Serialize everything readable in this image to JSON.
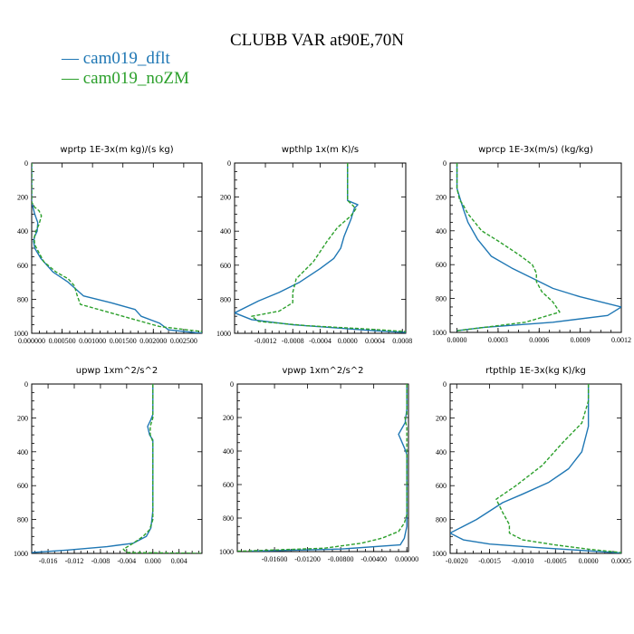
{
  "figure": {
    "title": "CLUBB VAR at90E,70N",
    "legend": [
      {
        "label": "— cam019_dflt",
        "name": "cam019_dflt",
        "color": "#1f77b4"
      },
      {
        "label": "— cam019_noZM",
        "name": "cam019_noZM",
        "color": "#2ca02c"
      }
    ]
  },
  "chart_data": [
    {
      "type": "line",
      "title": "wprtp  1E-3x(m kg)/(s kg)",
      "xlim": [
        0,
        0.0028
      ],
      "ylim": [
        1000,
        0
      ],
      "xticks": [
        0,
        0.0005,
        0.001,
        0.0015,
        0.002,
        0.0025
      ],
      "xtick_labels": [
        "0.000000",
        "0.000500",
        "0.001000",
        "0.001500",
        "0.002000",
        "0.002500"
      ],
      "yticks": [
        0,
        200,
        400,
        600,
        800,
        1000
      ],
      "ytick_labels": [
        "0",
        "200",
        "400",
        "600",
        "800",
        "1000"
      ],
      "series": [
        {
          "name": "cam019_dflt",
          "color": "#1f77b4",
          "dashed": false,
          "x": [
            0,
            0,
            0,
            5e-05,
            0.0001,
            9e-05,
            5e-05,
            3e-05,
            5e-05,
            0.00015,
            0.00035,
            0.0006,
            0.00085,
            0.0013,
            0.0017,
            0.00175,
            0.0018,
            0.0021,
            0.00225,
            0.0028
          ],
          "y": [
            0,
            100,
            230,
            300,
            350,
            400,
            430,
            460,
            500,
            560,
            640,
            700,
            780,
            820,
            860,
            880,
            900,
            940,
            980,
            1000
          ]
        },
        {
          "name": "cam019_noZM",
          "color": "#2ca02c",
          "dashed": true,
          "x": [
            0,
            0,
            0,
            5e-05,
            0.00012,
            0.00016,
            0.00012,
            7e-05,
            4e-05,
            5e-05,
            0.0002,
            0.0004,
            0.0006,
            0.0007,
            0.00075,
            0.0008,
            0.0012,
            0.0017,
            0.0021,
            0.0028
          ],
          "y": [
            0,
            100,
            230,
            260,
            280,
            310,
            360,
            400,
            440,
            480,
            580,
            640,
            680,
            720,
            780,
            830,
            870,
            920,
            960,
            990
          ]
        }
      ]
    },
    {
      "type": "line",
      "title": "wpthlp  1x(m K)/s",
      "xlim": [
        -0.00165,
        0.00085
      ],
      "ylim": [
        1000,
        0
      ],
      "xticks": [
        -0.0012,
        -0.0008,
        -0.0004,
        0,
        0.0004,
        0.0008
      ],
      "xtick_labels": [
        "-0.0012",
        "-0.0008",
        "-0.0004",
        "0.0000",
        "0.0004",
        "0.0008"
      ],
      "yticks": [
        0,
        200,
        400,
        600,
        800,
        1000
      ],
      "ytick_labels": [
        "0",
        "200",
        "400",
        "600",
        "800",
        "1000"
      ],
      "series": [
        {
          "name": "cam019_dflt",
          "color": "#1f77b4",
          "dashed": false,
          "x": [
            0,
            0,
            0,
            0.00015,
            0.0001,
            5e-05,
            -5e-05,
            -0.0001,
            -0.0002,
            -0.0004,
            -0.0007,
            -0.001,
            -0.0013,
            -0.00165,
            -0.0014,
            -0.0008,
            0.0004,
            0.00085
          ],
          "y": [
            0,
            120,
            220,
            245,
            265,
            330,
            430,
            500,
            560,
            620,
            700,
            760,
            810,
            880,
            920,
            950,
            985,
            995
          ]
        },
        {
          "name": "cam019_noZM",
          "color": "#2ca02c",
          "dashed": true,
          "x": [
            0,
            0,
            0,
            8e-05,
            0.00012,
            5e-05,
            -0.00015,
            -0.0003,
            -0.0005,
            -0.00075,
            -0.0008,
            -0.0008,
            -0.001,
            -0.0014,
            -0.0013,
            -0.0006,
            0.0003,
            0.00085
          ],
          "y": [
            0,
            120,
            220,
            250,
            270,
            310,
            380,
            460,
            580,
            680,
            760,
            820,
            870,
            900,
            930,
            955,
            975,
            990
          ]
        }
      ]
    },
    {
      "type": "line",
      "title": "wprcp  1E-3x(m/s) (kg/kg)",
      "xlim": [
        -5e-05,
        0.0012
      ],
      "ylim": [
        1000,
        0
      ],
      "xticks": [
        0,
        0.0003,
        0.0006,
        0.0009,
        0.0012
      ],
      "xtick_labels": [
        "0.0000",
        "0.0003",
        "0.0006",
        "0.0009",
        "0.0012"
      ],
      "yticks": [
        0,
        200,
        400,
        600,
        800,
        1000
      ],
      "ytick_labels": [
        "0",
        "200",
        "400",
        "600",
        "800",
        "1000"
      ],
      "series": [
        {
          "name": "cam019_dflt",
          "color": "#1f77b4",
          "dashed": false,
          "x": [
            0,
            0,
            3e-05,
            5e-05,
            8e-05,
            0.00015,
            0.00025,
            0.0004,
            0.00055,
            0.0007,
            0.0009,
            0.0012,
            0.0011,
            0.0007,
            0.0002,
            0
          ],
          "y": [
            0,
            150,
            230,
            280,
            350,
            450,
            550,
            620,
            680,
            740,
            790,
            850,
            900,
            940,
            970,
            990
          ]
        },
        {
          "name": "cam019_noZM",
          "color": "#2ca02c",
          "dashed": true,
          "x": [
            0,
            0,
            2e-05,
            4e-05,
            8e-05,
            0.00018,
            0.0003,
            0.00045,
            0.00055,
            0.00058,
            0.00058,
            0.00062,
            0.0007,
            0.00075,
            0.0005,
            0.0002,
            0
          ],
          "y": [
            0,
            150,
            220,
            240,
            300,
            400,
            460,
            540,
            600,
            650,
            700,
            760,
            820,
            880,
            940,
            970,
            990
          ]
        }
      ]
    },
    {
      "type": "line",
      "title": "upwp  1xm^2/s^2",
      "xlim": [
        -0.0185,
        0.0075
      ],
      "ylim": [
        1000,
        0
      ],
      "xticks": [
        -0.016,
        -0.012,
        -0.008,
        -0.004,
        0,
        0.004
      ],
      "xtick_labels": [
        "-0.016",
        "-0.012",
        "-0.008",
        "-0.004",
        "0.000",
        "0.004"
      ],
      "yticks": [
        0,
        200,
        400,
        600,
        800,
        1000
      ],
      "ytick_labels": [
        "0",
        "200",
        "400",
        "600",
        "800",
        "1000"
      ],
      "series": [
        {
          "name": "cam019_dflt",
          "color": "#1f77b4",
          "dashed": false,
          "x": [
            0,
            0,
            -0.0003,
            -0.0008,
            -0.0005,
            0,
            0,
            -0.0003,
            -0.001,
            -0.003,
            -0.007,
            -0.013,
            -0.0185
          ],
          "y": [
            0,
            180,
            210,
            250,
            300,
            330,
            750,
            850,
            900,
            940,
            960,
            980,
            995
          ]
        },
        {
          "name": "cam019_noZM",
          "color": "#2ca02c",
          "dashed": true,
          "x": [
            0,
            0,
            -0.0004,
            -0.0004,
            0,
            0,
            -0.0005,
            -0.0015,
            -0.003,
            -0.0045,
            -0.004,
            0.004,
            0.0075
          ],
          "y": [
            0,
            200,
            250,
            300,
            340,
            800,
            860,
            900,
            940,
            975,
            995,
            998,
            1000
          ]
        }
      ]
    },
    {
      "type": "line",
      "title": "vpwp  1xm^2/s^2",
      "xlim": [
        -0.0205,
        0.0002
      ],
      "ylim": [
        1000,
        0
      ],
      "xticks": [
        -0.016,
        -0.012,
        -0.008,
        -0.004,
        0
      ],
      "xtick_labels": [
        "-0.01600",
        "-0.01200",
        "-0.00800",
        "-0.00400",
        "0.00000"
      ],
      "yticks": [
        0,
        200,
        400,
        600,
        800,
        1000
      ],
      "ytick_labels": [
        "0",
        "200",
        "400",
        "600",
        "800",
        "1000"
      ],
      "series": [
        {
          "name": "cam019_dflt",
          "color": "#1f77b4",
          "dashed": false,
          "x": [
            0,
            0,
            -0.0002,
            -0.001,
            -0.0003,
            0,
            0,
            -0.0003,
            -0.0008,
            -0.008,
            -0.019
          ],
          "y": [
            0,
            150,
            230,
            300,
            380,
            420,
            850,
            920,
            960,
            985,
            998
          ]
        },
        {
          "name": "cam019_noZM",
          "color": "#2ca02c",
          "dashed": true,
          "x": [
            0,
            0,
            -0.0002,
            0,
            0,
            -0.0003,
            -0.001,
            -0.003,
            -0.0055,
            -0.01,
            -0.0205
          ],
          "y": [
            0,
            180,
            210,
            260,
            780,
            830,
            880,
            920,
            950,
            980,
            998
          ]
        }
      ]
    },
    {
      "type": "line",
      "title": "rtpthlp  1E-3x(kg K)/kg",
      "xlim": [
        -0.0021,
        0.0005
      ],
      "ylim": [
        1000,
        0
      ],
      "xticks": [
        -0.002,
        -0.0015,
        -0.001,
        -0.0005,
        0,
        0.0005
      ],
      "xtick_labels": [
        "-0.0020",
        "-0.0015",
        "-0.0010",
        "-0.0005",
        "0.0000",
        "0.0005"
      ],
      "yticks": [
        0,
        200,
        400,
        600,
        800,
        1000
      ],
      "ytick_labels": [
        "0",
        "200",
        "400",
        "600",
        "800",
        "1000"
      ],
      "series": [
        {
          "name": "cam019_dflt",
          "color": "#1f77b4",
          "dashed": false,
          "x": [
            0,
            0,
            0,
            -0.0001,
            -0.0003,
            -0.0006,
            -0.001,
            -0.0013,
            -0.0015,
            -0.0017,
            -0.0021,
            -0.0019,
            -0.0015,
            -0.0008,
            0,
            0.0005
          ],
          "y": [
            0,
            100,
            250,
            400,
            500,
            580,
            650,
            700,
            750,
            800,
            880,
            920,
            945,
            965,
            985,
            998
          ]
        },
        {
          "name": "cam019_noZM",
          "color": "#2ca02c",
          "dashed": true,
          "x": [
            0,
            0,
            -0.0001,
            -0.0004,
            -0.0007,
            -0.0011,
            -0.0014,
            -0.0013,
            -0.0012,
            -0.0012,
            -0.001,
            -0.0005,
            0,
            0.0005
          ],
          "y": [
            0,
            100,
            230,
            350,
            480,
            600,
            680,
            760,
            830,
            880,
            920,
            950,
            975,
            995
          ]
        }
      ]
    }
  ]
}
